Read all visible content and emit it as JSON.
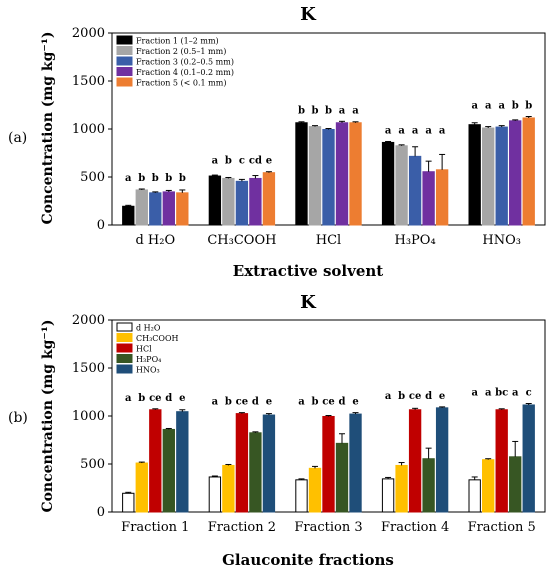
{
  "panel_labels": [
    "(a)",
    "(b)"
  ],
  "colors": {
    "fraction_1": "#000000",
    "fraction_2": "#a6a6a6",
    "fraction_3": "#3a5ea8",
    "fraction_4": "#7030a0",
    "fraction_5": "#ed7d31",
    "d_h2o": "#ffffff",
    "ch3cooh": "#ffc000",
    "hcl": "#c00000",
    "h3po4": "#375623",
    "hno3": "#1f4e79"
  },
  "chart_data": [
    {
      "type": "bar",
      "panel": "(a)",
      "title": "K",
      "ylabel": "Concentration  (mg kg⁻¹)",
      "xlabel": "Extractive solvent",
      "ylim": [
        0,
        2000
      ],
      "yticks": [
        0,
        500,
        1000,
        1500,
        2000
      ],
      "grid": false,
      "legend_position": "top-left",
      "categories": [
        "d H₂O",
        "CH₃COOH",
        "HCl",
        "H₃PO₄",
        "HNO₃"
      ],
      "series": [
        {
          "name": "Fraction 1 (1–2 mm)",
          "color": "#000000",
          "values": [
            195,
            510,
            1065,
            860,
            1045
          ],
          "errors": [
            10,
            10,
            10,
            10,
            20
          ],
          "letters": [
            "a",
            "a",
            "b",
            "a",
            "a"
          ]
        },
        {
          "name": "Fraction 2 (0.5–1 mm)",
          "color": "#a6a6a6",
          "values": [
            365,
            485,
            1025,
            825,
            1010
          ],
          "errors": [
            10,
            10,
            10,
            10,
            15
          ],
          "letters": [
            "b",
            "b",
            "b",
            "a",
            "a"
          ]
        },
        {
          "name": "Fraction 3 (0.2–0.5 mm)",
          "color": "#3a5ea8",
          "values": [
            335,
            455,
            995,
            715,
            1020
          ],
          "errors": [
            10,
            20,
            10,
            100,
            15
          ],
          "letters": [
            "b",
            "c",
            "b",
            "a",
            "a"
          ]
        },
        {
          "name": "Fraction 4 (0.1–0.2 mm)",
          "color": "#7030a0",
          "values": [
            345,
            485,
            1065,
            555,
            1085
          ],
          "errors": [
            15,
            30,
            15,
            110,
            10
          ],
          "letters": [
            "b",
            "cd",
            "a",
            "a",
            "b"
          ]
        },
        {
          "name": "Fraction 5 (< 0.1 mm)",
          "color": "#ed7d31",
          "values": [
            335,
            545,
            1065,
            575,
            1115
          ],
          "errors": [
            30,
            10,
            10,
            160,
            15
          ],
          "letters": [
            "b",
            "e",
            "a",
            "a",
            "b"
          ]
        }
      ]
    },
    {
      "type": "bar",
      "panel": "(b)",
      "title": "K",
      "ylabel": "Concentration  (mg kg⁻¹)",
      "xlabel": "Glauconite fractions",
      "ylim": [
        0,
        2000
      ],
      "yticks": [
        0,
        500,
        1000,
        1500,
        2000
      ],
      "grid": false,
      "legend_position": "top-left",
      "categories": [
        "Fraction 1",
        "Fraction 2",
        "Fraction 3",
        "Fraction 4",
        "Fraction 5"
      ],
      "series": [
        {
          "name": "d H₂O",
          "color": "#ffffff",
          "values": [
            195,
            365,
            335,
            345,
            335
          ],
          "errors": [
            10,
            10,
            10,
            15,
            30
          ],
          "letters": [
            "a",
            "a",
            "a",
            "a",
            "a"
          ]
        },
        {
          "name": "CH₃COOH",
          "color": "#ffc000",
          "values": [
            510,
            485,
            455,
            485,
            545
          ],
          "errors": [
            10,
            10,
            20,
            30,
            10
          ],
          "letters": [
            "b",
            "b",
            "b",
            "b",
            "a"
          ]
        },
        {
          "name": "HCl",
          "color": "#c00000",
          "values": [
            1065,
            1025,
            995,
            1065,
            1065
          ],
          "errors": [
            10,
            10,
            10,
            15,
            10
          ],
          "letters": [
            "ce",
            "ce",
            "ce",
            "ce",
            "bc"
          ]
        },
        {
          "name": "H₃PO₄",
          "color": "#375623",
          "values": [
            860,
            825,
            715,
            555,
            575
          ],
          "errors": [
            10,
            10,
            100,
            110,
            160
          ],
          "letters": [
            "d",
            "d",
            "d",
            "d",
            "a"
          ]
        },
        {
          "name": "HNO₃",
          "color": "#1f4e79",
          "values": [
            1045,
            1010,
            1020,
            1085,
            1115
          ],
          "errors": [
            20,
            15,
            15,
            10,
            15
          ],
          "letters": [
            "e",
            "e",
            "e",
            "e",
            "c"
          ]
        }
      ]
    }
  ]
}
